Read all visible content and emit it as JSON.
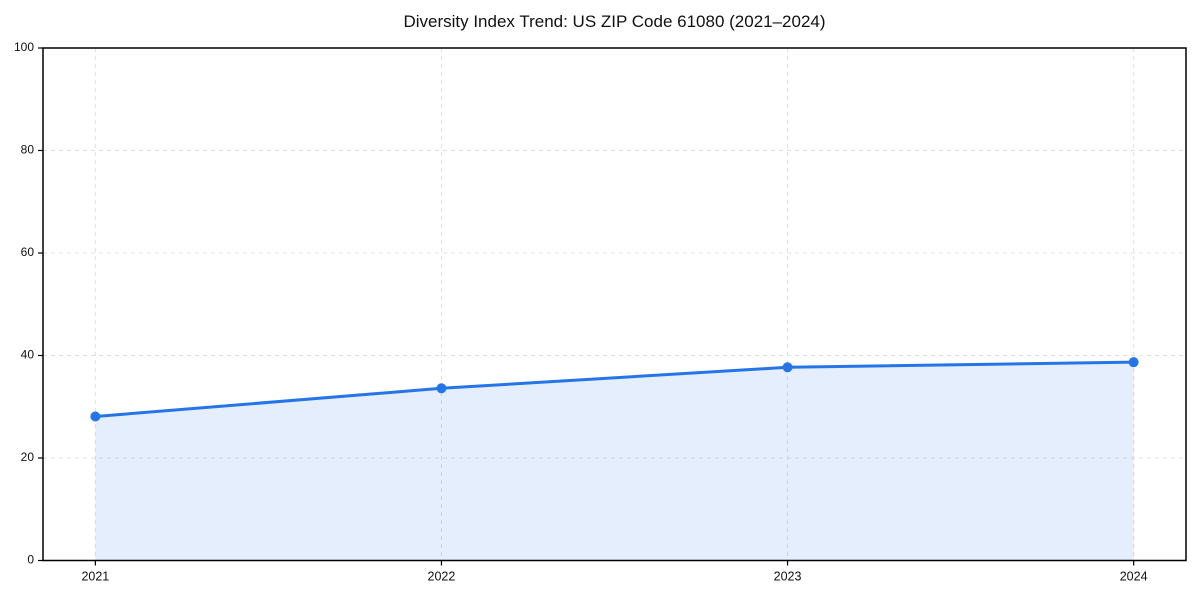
{
  "chart_data": {
    "type": "line",
    "title": "Diversity Index Trend: US ZIP Code 61080 (2021–2024)",
    "x": [
      "2021",
      "2022",
      "2023",
      "2024"
    ],
    "values": [
      28.1,
      33.6,
      37.7,
      38.7
    ],
    "ylim": [
      0,
      100
    ],
    "yticks": [
      0,
      20,
      40,
      60,
      80,
      100
    ],
    "grid": "dashed",
    "legend": "none",
    "area": true,
    "colors": {
      "line": "#2575e8",
      "marker": "#2575e8",
      "fill": "rgba(37,117,232,0.12)",
      "gridline": "#e0e0e0",
      "axis": "#000000",
      "tick_label": "#111111"
    }
  }
}
